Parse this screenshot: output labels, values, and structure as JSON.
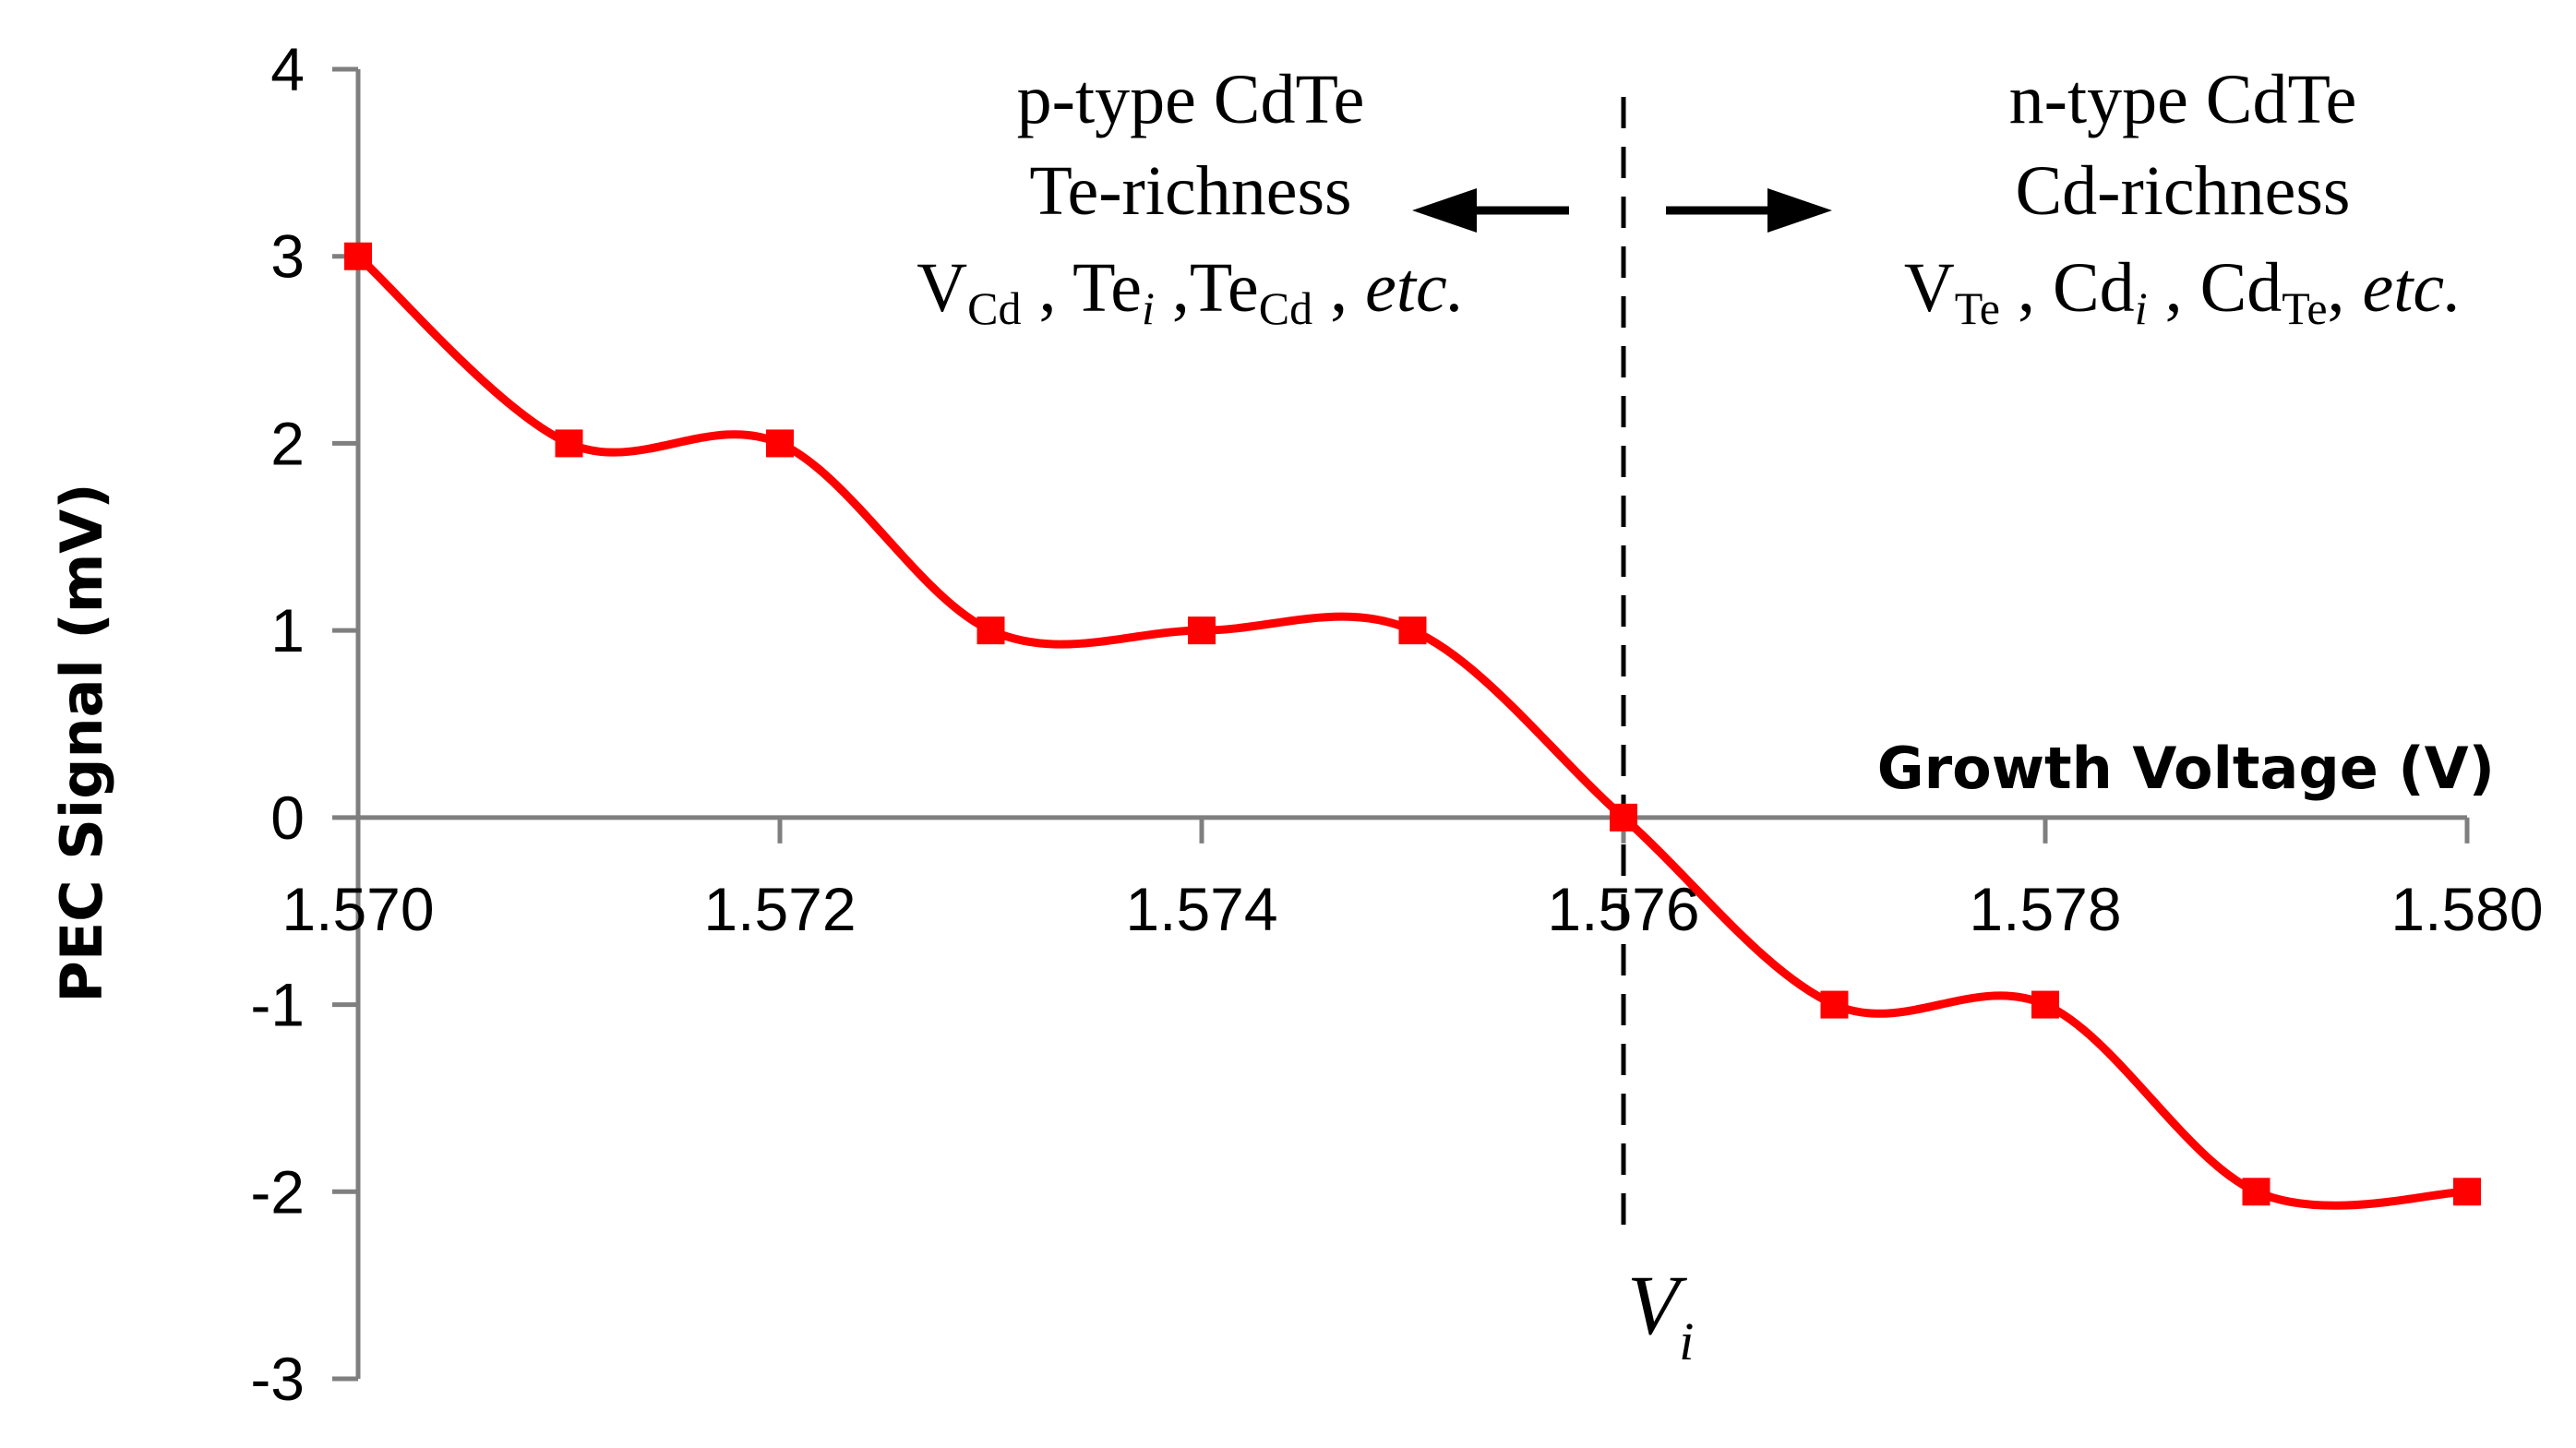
{
  "chart_data": {
    "type": "line",
    "title": "",
    "xlabel": "Growth Voltage (V)",
    "ylabel": "PEC Signal (mV)",
    "xlim": [
      1.57,
      1.58
    ],
    "ylim": [
      -3,
      4
    ],
    "x_ticks": [
      "1.570",
      "1.572",
      "1.574",
      "1.576",
      "1.578",
      "1.580"
    ],
    "x_tick_values": [
      1.57,
      1.572,
      1.574,
      1.576,
      1.578,
      1.58
    ],
    "y_ticks": [
      "4",
      "3",
      "2",
      "1",
      "0",
      "-1",
      "-2",
      "-3"
    ],
    "y_tick_values": [
      4,
      3,
      2,
      1,
      0,
      -1,
      -2,
      -3
    ],
    "grid": false,
    "series": [
      {
        "name": "PEC Signal",
        "color": "#ff0000",
        "marker": "square",
        "smooth": true,
        "x": [
          1.57,
          1.571,
          1.572,
          1.573,
          1.574,
          1.575,
          1.576,
          1.577,
          1.578,
          1.579,
          1.58
        ],
        "y": [
          3,
          2,
          2,
          1,
          1,
          1,
          0,
          -1,
          -1,
          -2,
          -2
        ]
      }
    ],
    "reference_line": {
      "x": 1.576,
      "style": "dashed",
      "label_main": "V",
      "label_sub": "i"
    },
    "annotations": {
      "left": {
        "line1": "p-type CdTe",
        "line2": "Te-richness",
        "line3": {
          "t1": "V",
          "s1": "Cd",
          "t2": " , Te",
          "s2": "i",
          "t3": " ,Te",
          "s3": "Cd",
          "t4": " , ",
          "etc": "etc."
        }
      },
      "right": {
        "line1": "n-type CdTe",
        "line2": "Cd-richness",
        "line3": {
          "t1": "V",
          "s1": "Te",
          "t2": " , Cd",
          "s2": "i",
          "t3": " , Cd",
          "s3": "Te",
          "t4": ", ",
          "etc": "etc."
        }
      }
    }
  }
}
